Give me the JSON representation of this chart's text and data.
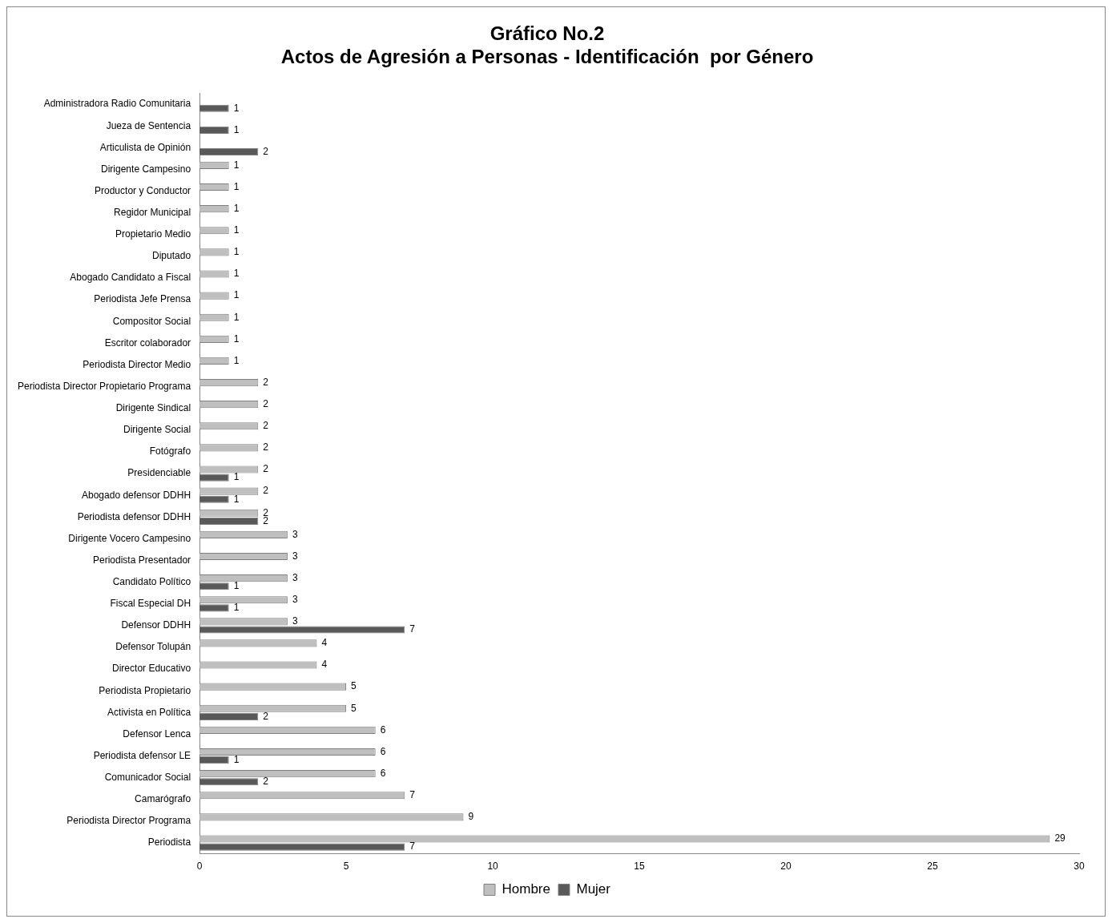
{
  "chart_data": {
    "type": "bar",
    "orientation": "horizontal",
    "title": "Gráfico No.2",
    "subtitle": "Actos de Agresión a Personas - Identificación  por Género",
    "categories": [
      "Administradora Radio Comunitaria",
      "Jueza de Sentencia",
      "Articulista de Opinión",
      "Dirigente Campesino",
      "Productor y Conductor",
      "Regidor Municipal",
      "Propietario Medio",
      "Diputado",
      "Abogado Candidato a Fiscal",
      "Periodista Jefe Prensa",
      "Compositor Social",
      "Escritor colaborador",
      "Periodista Director Medio",
      "Periodista Director Propietario Programa",
      "Dirigente Sindical",
      "Dirigente Social",
      "Fotógrafo",
      "Presidenciable",
      "Abogado defensor DDHH",
      "Periodista defensor DDHH",
      "Dirigente Vocero Campesino",
      "Periodista Presentador",
      "Candidato Político",
      "Fiscal Especial DH",
      "Defensor DDHH",
      "Defensor Tolupán",
      "Director Educativo",
      "Periodista Propietario",
      "Activista en Política",
      "Defensor Lenca",
      "Periodista defensor LE",
      "Comunicador Social",
      "Camarógrafo",
      "Periodista Director Programa",
      "Periodista"
    ],
    "series": [
      {
        "name": "Hombre",
        "color": "#bfbfbf",
        "values": [
          null,
          null,
          null,
          1,
          1,
          1,
          1,
          1,
          1,
          1,
          1,
          1,
          1,
          2,
          2,
          2,
          2,
          2,
          2,
          2,
          3,
          3,
          3,
          3,
          3,
          4,
          4,
          5,
          5,
          6,
          6,
          6,
          7,
          9,
          29
        ]
      },
      {
        "name": "Mujer",
        "color": "#595959",
        "values": [
          1,
          1,
          2,
          null,
          null,
          null,
          null,
          null,
          null,
          null,
          null,
          null,
          null,
          null,
          null,
          null,
          null,
          1,
          1,
          2,
          null,
          null,
          1,
          1,
          7,
          null,
          null,
          null,
          2,
          null,
          1,
          2,
          null,
          null,
          7
        ]
      }
    ],
    "xlim": [
      0,
      30
    ],
    "xticks": [
      0,
      5,
      10,
      15,
      20,
      25,
      30
    ],
    "grid": false,
    "legend": "bottom",
    "data_labels": true
  }
}
